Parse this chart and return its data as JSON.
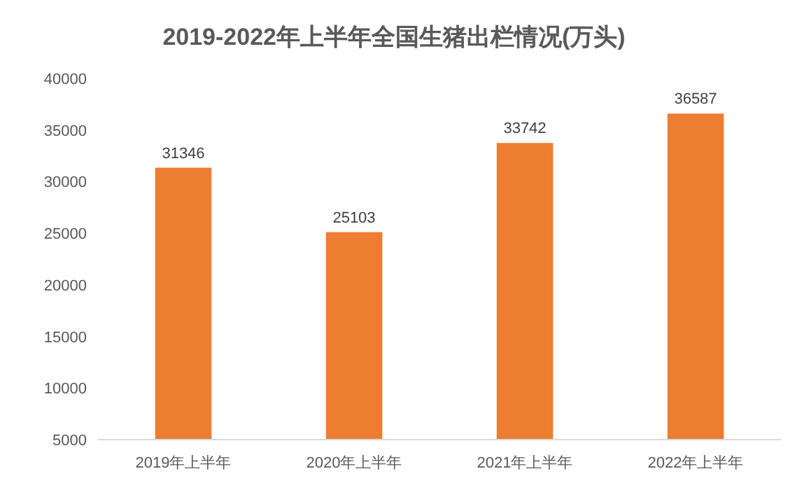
{
  "chart_data": {
    "type": "bar",
    "title": "2019-2022年上半年全国生猪出栏情况(万头)",
    "categories": [
      "2019年上半年",
      "2020年上半年",
      "2021年上半年",
      "2022年上半年"
    ],
    "values": [
      31346,
      25103,
      33742,
      36587
    ],
    "color": "#ed7d31",
    "ylim": [
      5000,
      40000
    ],
    "yticks": [
      5000,
      10000,
      15000,
      20000,
      25000,
      30000,
      35000,
      40000
    ],
    "data_labels": true,
    "grid": false
  }
}
